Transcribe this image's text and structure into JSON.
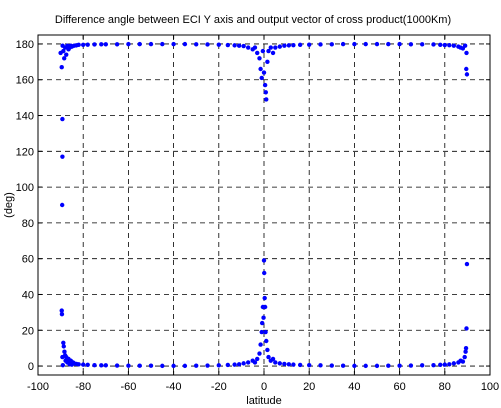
{
  "chart_data": {
    "type": "scatter",
    "title": "Difference angle between ECI Y axis and output vector of cross product(1000Km)",
    "xlabel": "latitude",
    "ylabel": "(deg)",
    "xlim": [
      -100,
      100
    ],
    "ylim": [
      -5,
      185
    ],
    "xticks": [
      -100,
      -80,
      -60,
      -40,
      -20,
      0,
      20,
      40,
      60,
      80,
      100
    ],
    "yticks": [
      0,
      20,
      40,
      60,
      80,
      100,
      120,
      140,
      160,
      180
    ],
    "grid": true,
    "grid_style": "dashed",
    "legend": "none",
    "series": [
      {
        "color": "#0000ff",
        "marker": "dot",
        "points": [
          [
            -90,
            175
          ],
          [
            -89.5,
            167
          ],
          [
            -89.2,
            138
          ],
          [
            -89.2,
            117
          ],
          [
            -89.3,
            90
          ],
          [
            -89.1,
            179
          ],
          [
            -88.8,
            176
          ],
          [
            -88.4,
            172
          ],
          [
            -88,
            178
          ],
          [
            -87.5,
            174
          ],
          [
            -87,
            179
          ],
          [
            -86.5,
            177
          ],
          [
            -86,
            178
          ],
          [
            -85.5,
            179
          ],
          [
            -85,
            178.5
          ],
          [
            -84,
            179
          ],
          [
            -83,
            179.2
          ],
          [
            -82,
            179.5
          ],
          [
            -80,
            179.5
          ],
          [
            -78,
            179.6
          ],
          [
            -75,
            179.7
          ],
          [
            -72,
            179.8
          ],
          [
            -70,
            179.8
          ],
          [
            -65,
            179.8
          ],
          [
            -60,
            179.9
          ],
          [
            -55,
            179.9
          ],
          [
            -50,
            179.9
          ],
          [
            -45,
            179.9
          ],
          [
            -40,
            179.9
          ],
          [
            -35,
            179.9
          ],
          [
            -30,
            179.8
          ],
          [
            -25,
            179.7
          ],
          [
            -20,
            179.6
          ],
          [
            -16,
            179.4
          ],
          [
            -13,
            179.2
          ],
          [
            -11,
            179
          ],
          [
            -9,
            178.8
          ],
          [
            -7,
            178
          ],
          [
            -5,
            177
          ],
          [
            -4,
            178
          ],
          [
            -3,
            175
          ],
          [
            -2,
            172
          ],
          [
            -1.5,
            166
          ],
          [
            -1,
            161
          ],
          [
            -0.5,
            176
          ],
          [
            0,
            164
          ],
          [
            0.5,
            157
          ],
          [
            0.8,
            153
          ],
          [
            1,
            149
          ],
          [
            1.5,
            170
          ],
          [
            2,
            176
          ],
          [
            3,
            178
          ],
          [
            4,
            175
          ],
          [
            5,
            178
          ],
          [
            7,
            178.5
          ],
          [
            9,
            179
          ],
          [
            11,
            179.2
          ],
          [
            13,
            179.3
          ],
          [
            16,
            179.5
          ],
          [
            20,
            179.6
          ],
          [
            25,
            179.7
          ],
          [
            30,
            179.8
          ],
          [
            35,
            179.9
          ],
          [
            40,
            179.9
          ],
          [
            45,
            179.9
          ],
          [
            50,
            179.9
          ],
          [
            55,
            179.9
          ],
          [
            60,
            179.9
          ],
          [
            65,
            179.8
          ],
          [
            70,
            179.8
          ],
          [
            75,
            179.7
          ],
          [
            78,
            179.5
          ],
          [
            80,
            179.4
          ],
          [
            82,
            179.3
          ],
          [
            84,
            179
          ],
          [
            86,
            178.5
          ],
          [
            87,
            178
          ],
          [
            88,
            177.5
          ],
          [
            89,
            179
          ],
          [
            89.5,
            166
          ],
          [
            89.8,
            163
          ],
          [
            89.6,
            175
          ],
          [
            -89.5,
            31
          ],
          [
            -89.4,
            29
          ],
          [
            -89.2,
            5
          ],
          [
            -89,
            0.5
          ],
          [
            -88.8,
            13
          ],
          [
            -88.6,
            11
          ],
          [
            -88.3,
            8
          ],
          [
            -88,
            6
          ],
          [
            -87.8,
            3
          ],
          [
            -87.5,
            5
          ],
          [
            -87,
            2
          ],
          [
            -86.5,
            4
          ],
          [
            -86,
            1
          ],
          [
            -85.5,
            3
          ],
          [
            -85,
            0.8
          ],
          [
            -84.5,
            2
          ],
          [
            -84,
            1.5
          ],
          [
            -83,
            1.2
          ],
          [
            -82,
            1
          ],
          [
            -80,
            0.8
          ],
          [
            -78,
            0.7
          ],
          [
            -75,
            0.5
          ],
          [
            -72,
            0.4
          ],
          [
            -70,
            0.4
          ],
          [
            -65,
            0.3
          ],
          [
            -60,
            0.2
          ],
          [
            -55,
            0.2
          ],
          [
            -50,
            0.2
          ],
          [
            -45,
            0.1
          ],
          [
            -40,
            0.1
          ],
          [
            -35,
            0.1
          ],
          [
            -30,
            0.2
          ],
          [
            -25,
            0.3
          ],
          [
            -20,
            0.4
          ],
          [
            -16,
            0.6
          ],
          [
            -13,
            0.8
          ],
          [
            -11,
            1
          ],
          [
            -9,
            1.5
          ],
          [
            -7,
            2
          ],
          [
            -5,
            3
          ],
          [
            -4,
            2
          ],
          [
            -3,
            4
          ],
          [
            -2,
            7
          ],
          [
            -1.5,
            12
          ],
          [
            -1,
            19
          ],
          [
            -0.8,
            24
          ],
          [
            -0.5,
            33
          ],
          [
            -0.2,
            27
          ],
          [
            0,
            59
          ],
          [
            0.1,
            52
          ],
          [
            0.3,
            38
          ],
          [
            0.5,
            33
          ],
          [
            0.7,
            19
          ],
          [
            1,
            14
          ],
          [
            1.5,
            9
          ],
          [
            2,
            5
          ],
          [
            3,
            3
          ],
          [
            4,
            4
          ],
          [
            5,
            2
          ],
          [
            7,
            1.5
          ],
          [
            9,
            1.2
          ],
          [
            11,
            1
          ],
          [
            13,
            0.8
          ],
          [
            16,
            0.6
          ],
          [
            20,
            0.5
          ],
          [
            25,
            0.4
          ],
          [
            30,
            0.3
          ],
          [
            35,
            0.2
          ],
          [
            40,
            0.1
          ],
          [
            45,
            0.1
          ],
          [
            50,
            0.1
          ],
          [
            55,
            0.2
          ],
          [
            60,
            0.2
          ],
          [
            65,
            0.3
          ],
          [
            70,
            0.4
          ],
          [
            75,
            0.5
          ],
          [
            78,
            0.7
          ],
          [
            80,
            0.8
          ],
          [
            82,
            1
          ],
          [
            84,
            1.5
          ],
          [
            86,
            2
          ],
          [
            87,
            3
          ],
          [
            88,
            2.5
          ],
          [
            88.8,
            5
          ],
          [
            89.2,
            8
          ],
          [
            89.4,
            10
          ],
          [
            89.6,
            21
          ],
          [
            89.8,
            57
          ]
        ]
      }
    ]
  }
}
